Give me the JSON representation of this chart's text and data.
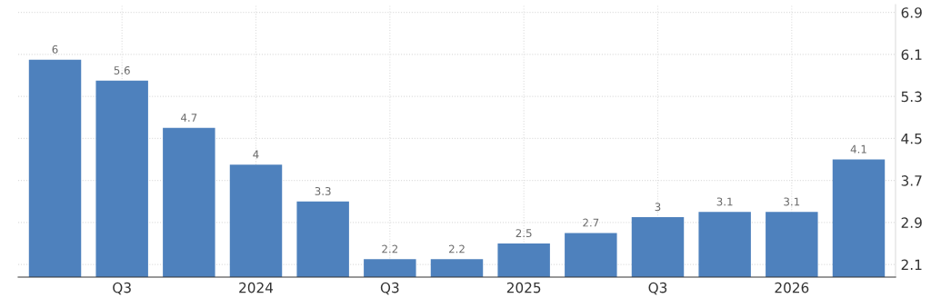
{
  "chart_data": {
    "type": "bar",
    "categories": [
      null,
      "Q3",
      null,
      "2024",
      null,
      "Q3",
      null,
      "2025",
      null,
      "Q3",
      null,
      "2026",
      null
    ],
    "values": [
      6,
      5.6,
      4.7,
      4,
      3.3,
      2.2,
      2.2,
      2.5,
      2.7,
      3,
      3.1,
      3.1,
      4.1
    ],
    "color": "#4e81bd",
    "ylim": [
      1.86,
      7.05
    ],
    "yticks": [
      2.1,
      2.9,
      3.7,
      4.5,
      5.3,
      6.1,
      6.9
    ],
    "grid": true,
    "data_labels": true
  }
}
